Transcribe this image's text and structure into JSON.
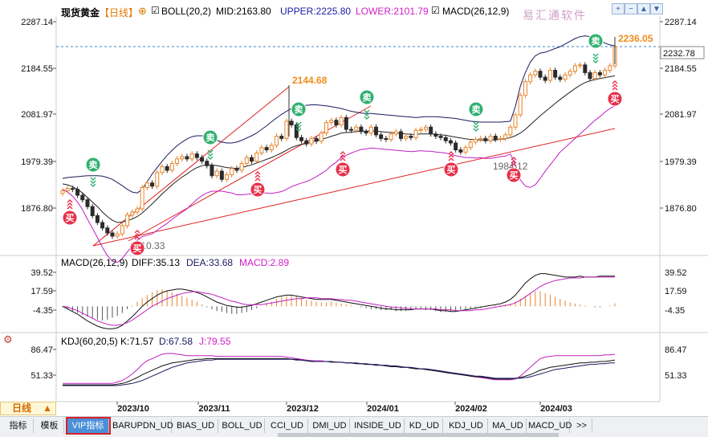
{
  "title": "现货黄金",
  "timeframe": "【日线】",
  "timeframe_label": "日线",
  "watermark": "易汇通软件",
  "indicators": {
    "boll": {
      "label": "BOLL(20,2)",
      "mid": "MID:2163.80",
      "upper": "UPPER:2225.80",
      "lower": "LOWER:2101.79"
    },
    "macd_main": "MACD(26,12,9)",
    "macd_panel": {
      "label": "MACD(26,12,9)",
      "diff": "DIFF:35.13",
      "dea": "DEA:33.68",
      "macd": "MACD:2.89"
    },
    "kdj_panel": {
      "label": "KDJ(60,20,5)",
      "k": "K:71.57",
      "d": "D:67.58",
      "j": "J:79.55"
    }
  },
  "price_axis": [
    "2287.14",
    "2184.55",
    "2081.97",
    "1979.39",
    "1876.80"
  ],
  "current_price": "2232.78",
  "macd_axis": [
    "39.52",
    "17.59",
    "-4.35"
  ],
  "kdj_axis": [
    "86.47",
    "51.33"
  ],
  "date_axis": [
    "2023/10",
    "2023/11",
    "2023/12",
    "2024/01",
    "2024/02",
    "2024/03"
  ],
  "annotations": {
    "high_recent": "2236.05",
    "high_dec": "2144.68",
    "low_oct": "1810.33",
    "low_feb": "1984.12"
  },
  "signals": {
    "buy": "买",
    "sell": "卖"
  },
  "tabs": [
    "指标",
    "模板",
    "VIP指标",
    "BARUPDN_UD",
    "BIAS_UD",
    "BOLL_UD",
    "CCI_UD",
    "DMI_UD",
    "INSIDE_UD",
    "KD_UD",
    "KDJ_UD",
    "MA_UD",
    "MACD_UD",
    ">>"
  ],
  "active_tab": "VIP指标",
  "window_controls": [
    "plus-icon",
    "minus-icon",
    "up-icon",
    "down-icon",
    "close-icon"
  ],
  "colors": {
    "up": "#e8842a",
    "down": "#2b2b2b",
    "boll": "#1a1a60",
    "lower": "#c020c0",
    "trend": "#e02020",
    "buy": "#e8304a",
    "sell": "#30b070",
    "price_tag": "#f08c1e"
  },
  "chart_data": [
    {
      "type": "candlestick",
      "title": "现货黄金【日线】",
      "series_names": [
        "MID",
        "UPPER",
        "LOWER"
      ],
      "x_labels": [
        "2023/10",
        "2023/11",
        "2023/12",
        "2024/01",
        "2024/02",
        "2024/03"
      ],
      "ylim": [
        1830,
        2300
      ],
      "close": [
        1915,
        1920,
        1918,
        1905,
        1895,
        1880,
        1860,
        1845,
        1833,
        1822,
        1815,
        1820,
        1838,
        1862,
        1868,
        1875,
        1922,
        1932,
        1925,
        1955,
        1968,
        1960,
        1975,
        1985,
        1990,
        1985,
        1996,
        1988,
        1980,
        1970,
        1948,
        1958,
        1940,
        1950,
        1964,
        1960,
        1975,
        1988,
        1980,
        1998,
        2010,
        2005,
        2015,
        2035,
        2030,
        2068,
        2060,
        2032,
        2025,
        2018,
        2030,
        2024,
        2042,
        2065,
        2070,
        2060,
        2076,
        2050,
        2048,
        2055,
        2045,
        2042,
        2055,
        2038,
        2030,
        2028,
        2040,
        2045,
        2030,
        2035,
        2032,
        2048,
        2050,
        2055,
        2040,
        2035,
        2032,
        2025,
        2020,
        2005,
        2000,
        2010,
        2022,
        2028,
        2030,
        2025,
        2035,
        2028,
        2030,
        2038,
        2055,
        2082,
        2125,
        2155,
        2170,
        2178,
        2165,
        2158,
        2180,
        2165,
        2160,
        2170,
        2178,
        2190,
        2192,
        2175,
        2162,
        2175,
        2170,
        2180,
        2190,
        2232
      ],
      "ma_mid": [
        1930,
        1928,
        1924,
        1918,
        1910,
        1900,
        1890,
        1880,
        1868,
        1858,
        1850,
        1845,
        1846,
        1849,
        1853,
        1858,
        1866,
        1876,
        1886,
        1897,
        1908,
        1918,
        1928,
        1937,
        1945,
        1952,
        1960,
        1966,
        1970,
        1972,
        1972,
        1970,
        1968,
        1966,
        1965,
        1964,
        1966,
        1969,
        1972,
        1976,
        1980,
        1984,
        1988,
        1993,
        1998,
        2004,
        2010,
        2014,
        2017,
        2019,
        2022,
        2025,
        2028,
        2031,
        2035,
        2038,
        2042,
        2043,
        2044,
        2045,
        2046,
        2046,
        2047,
        2046,
        2045,
        2044,
        2043,
        2042,
        2041,
        2040,
        2039,
        2039,
        2040,
        2040,
        2040,
        2039,
        2038,
        2037,
        2035,
        2033,
        2031,
        2029,
        2028,
        2027,
        2027,
        2026,
        2026,
        2027,
        2028,
        2029,
        2032,
        2036,
        2042,
        2050,
        2060,
        2070,
        2080,
        2089,
        2098,
        2107,
        2116,
        2124,
        2132,
        2140,
        2147,
        2153,
        2157,
        2160,
        2162,
        2164,
        2166,
        2168
      ],
      "boll_upper": [
        1942,
        1944,
        1945,
        1946,
        1947,
        1948,
        1948,
        1948,
        1947,
        1944,
        1940,
        1933,
        1926,
        1918,
        1912,
        1910,
        1918,
        1935,
        1952,
        1966,
        1980,
        1993,
        2004,
        2014,
        2022,
        2029,
        2034,
        2036,
        2036,
        2034,
        2030,
        2026,
        2022,
        2020,
        2020,
        2022,
        2026,
        2031,
        2036,
        2042,
        2050,
        2058,
        2067,
        2075,
        2083,
        2090,
        2096,
        2100,
        2102,
        2103,
        2104,
        2104,
        2103,
        2102,
        2100,
        2098,
        2096,
        2093,
        2090,
        2088,
        2086,
        2085,
        2085,
        2084,
        2083,
        2082,
        2081,
        2080,
        2079,
        2078,
        2077,
        2076,
        2077,
        2078,
        2078,
        2078,
        2077,
        2076,
        2075,
        2074,
        2072,
        2070,
        2068,
        2067,
        2066,
        2066,
        2066,
        2066,
        2066,
        2067,
        2068,
        2100,
        2145,
        2175,
        2198,
        2212,
        2218,
        2220,
        2224,
        2228,
        2232,
        2238,
        2244,
        2250,
        2254,
        2256,
        2254,
        2250,
        2246,
        2240,
        2236,
        2234
      ],
      "boll_lower": [
        1918,
        1912,
        1903,
        1890,
        1873,
        1852,
        1832,
        1812,
        1790,
        1772,
        1760,
        1757,
        1766,
        1780,
        1794,
        1806,
        1814,
        1817,
        1820,
        1828,
        1836,
        1843,
        1852,
        1860,
        1868,
        1875,
        1886,
        1896,
        1904,
        1910,
        1914,
        1914,
        1914,
        1912,
        1910,
        1906,
        1906,
        1907,
        1908,
        1910,
        1910,
        1910,
        1909,
        1911,
        1913,
        1918,
        1924,
        1928,
        1932,
        1935,
        1940,
        1946,
        1953,
        1960,
        1970,
        1978,
        1988,
        1993,
        1998,
        2002,
        2006,
        2007,
        2009,
        2008,
        2007,
        2006,
        2005,
        2004,
        2003,
        2002,
        2001,
        2002,
        2003,
        2002,
        2002,
        2000,
        1999,
        1998,
        1995,
        1992,
        1990,
        1988,
        1988,
        1987,
        1988,
        1986,
        1986,
        1988,
        1990,
        1991,
        1996,
        1972,
        1939,
        1925,
        1922,
        1928,
        1942,
        1958,
        1972,
        1986,
        2000,
        2010,
        2020,
        2030,
        2040,
        2050,
        2060,
        2070,
        2078,
        2088,
        2096,
        2102
      ]
    },
    {
      "type": "bar",
      "title": "MACD(26,12,9)",
      "series_names": [
        "DIFF",
        "DEA",
        "MACD"
      ],
      "ylim": [
        -15,
        45
      ],
      "hist": [
        -1,
        -3,
        -5,
        -7,
        -9,
        -11,
        -13,
        -14,
        -15,
        -14,
        -12,
        -10,
        -7,
        -3,
        1,
        5,
        9,
        12,
        15,
        17,
        18,
        17,
        15,
        13,
        11,
        9,
        7,
        5,
        2,
        -1,
        -3,
        -5,
        -6,
        -7,
        -8,
        -8,
        -7,
        -6,
        -4,
        -2,
        0,
        3,
        5,
        8,
        10,
        11,
        12,
        11,
        9,
        7,
        6,
        5,
        4,
        4,
        5,
        4,
        3,
        2,
        1,
        0,
        -1,
        -2,
        -3,
        -3,
        -4,
        -4,
        -4,
        -5,
        -5,
        -5,
        -4,
        -3,
        -3,
        -4,
        -4,
        -5,
        -6,
        -6,
        -6,
        -5,
        -4,
        -3,
        -2,
        -1,
        -1,
        0,
        0,
        1,
        1,
        2,
        3,
        5,
        8,
        11,
        14,
        16,
        16,
        14,
        12,
        10,
        8,
        6,
        4,
        3,
        2,
        1,
        0,
        -1,
        -1,
        0,
        1,
        3
      ],
      "diff": [
        0,
        -3,
        -6,
        -9,
        -13,
        -17,
        -20,
        -23,
        -25,
        -26,
        -26,
        -25,
        -22,
        -17,
        -12,
        -6,
        0,
        5,
        9,
        13,
        16,
        18,
        19,
        20,
        20,
        19,
        18,
        16,
        14,
        11,
        8,
        5,
        3,
        1,
        0,
        -1,
        -1,
        0,
        1,
        3,
        5,
        7,
        9,
        11,
        12,
        13,
        13,
        12,
        11,
        10,
        9,
        8,
        8,
        8,
        8,
        7,
        6,
        5,
        4,
        3,
        2,
        1,
        0,
        -1,
        -2,
        -3,
        -3,
        -4,
        -4,
        -4,
        -4,
        -3,
        -3,
        -3,
        -3,
        -4,
        -5,
        -5,
        -6,
        -6,
        -5,
        -4,
        -3,
        -2,
        -1,
        0,
        1,
        2,
        3,
        5,
        8,
        13,
        20,
        27,
        32,
        36,
        38,
        38,
        37,
        36,
        35,
        34,
        34,
        34,
        35,
        34,
        34,
        34,
        35,
        35,
        35,
        35
      ],
      "dea": [
        0,
        -1,
        -3,
        -5,
        -8,
        -11,
        -14,
        -17,
        -19,
        -21,
        -22,
        -22,
        -21,
        -19,
        -16,
        -12,
        -8,
        -4,
        0,
        3,
        6,
        9,
        11,
        13,
        15,
        16,
        17,
        17,
        16,
        15,
        14,
        12,
        10,
        8,
        6,
        5,
        3,
        2,
        2,
        2,
        2,
        3,
        4,
        5,
        6,
        7,
        8,
        9,
        9,
        10,
        10,
        10,
        9,
        9,
        9,
        8,
        8,
        7,
        7,
        6,
        5,
        4,
        3,
        2,
        1,
        0,
        -1,
        -1,
        -2,
        -2,
        -3,
        -3,
        -3,
        -3,
        -3,
        -3,
        -4,
        -4,
        -4,
        -5,
        -5,
        -5,
        -5,
        -4,
        -4,
        -3,
        -2,
        -1,
        0,
        1,
        2,
        4,
        7,
        11,
        15,
        19,
        23,
        26,
        28,
        30,
        31,
        32,
        33,
        33,
        33,
        34,
        34,
        34,
        34,
        34,
        34,
        34
      ]
    },
    {
      "type": "line",
      "title": "KDJ(60,20,5)",
      "series_names": [
        "K",
        "D",
        "J"
      ],
      "ylim": [
        35,
        95
      ],
      "k": [
        38,
        38,
        38,
        38,
        38,
        38,
        38,
        38,
        38,
        38,
        38,
        39,
        40,
        42,
        45,
        48,
        52,
        55,
        58,
        61,
        64,
        66,
        68,
        69,
        70,
        71,
        72,
        73,
        73,
        74,
        74,
        74,
        74,
        74,
        74,
        74,
        74,
        74,
        74,
        74,
        74,
        74,
        74,
        74,
        74,
        74,
        73,
        73,
        72,
        71,
        70,
        70,
        70,
        70,
        70,
        69,
        69,
        68,
        68,
        67,
        67,
        66,
        66,
        65,
        65,
        64,
        63,
        63,
        62,
        62,
        61,
        60,
        60,
        59,
        58,
        57,
        56,
        55,
        54,
        53,
        52,
        51,
        50,
        49,
        49,
        48,
        47,
        46,
        46,
        46,
        46,
        47,
        48,
        50,
        52,
        55,
        58,
        60,
        62,
        63,
        64,
        65,
        66,
        67,
        68,
        68,
        69,
        69,
        70,
        70,
        71,
        72
      ],
      "d": [
        37,
        37,
        37,
        37,
        37,
        37,
        37,
        37,
        37,
        37,
        37,
        37,
        38,
        39,
        40,
        42,
        44,
        47,
        50,
        53,
        56,
        59,
        62,
        64,
        66,
        68,
        69,
        70,
        71,
        72,
        72,
        73,
        73,
        73,
        73,
        73,
        73,
        73,
        73,
        73,
        73,
        73,
        73,
        73,
        73,
        73,
        73,
        72,
        72,
        71,
        71,
        70,
        70,
        70,
        69,
        69,
        69,
        68,
        68,
        68,
        67,
        67,
        66,
        66,
        65,
        65,
        64,
        64,
        63,
        62,
        62,
        61,
        60,
        60,
        59,
        58,
        57,
        56,
        55,
        54,
        53,
        52,
        51,
        50,
        50,
        49,
        48,
        47,
        47,
        47,
        47,
        47,
        47,
        48,
        49,
        51,
        53,
        55,
        57,
        59,
        60,
        61,
        62,
        63,
        64,
        65,
        66,
        66,
        67,
        67,
        68,
        68
      ],
      "j": [
        40,
        40,
        40,
        40,
        40,
        40,
        40,
        40,
        40,
        40,
        40,
        42,
        44,
        48,
        53,
        59,
        66,
        71,
        74,
        77,
        80,
        81,
        81,
        80,
        79,
        78,
        78,
        78,
        78,
        78,
        78,
        77,
        77,
        77,
        77,
        77,
        77,
        77,
        77,
        77,
        77,
        77,
        77,
        77,
        77,
        76,
        75,
        74,
        73,
        72,
        71,
        71,
        71,
        70,
        70,
        69,
        69,
        68,
        68,
        67,
        67,
        66,
        66,
        65,
        65,
        64,
        63,
        63,
        62,
        62,
        61,
        60,
        60,
        59,
        58,
        57,
        56,
        55,
        54,
        53,
        52,
        51,
        50,
        49,
        48,
        47,
        46,
        45,
        45,
        45,
        45,
        46,
        50,
        56,
        62,
        68,
        74,
        76,
        77,
        78,
        78,
        78,
        78,
        78,
        78,
        78,
        78,
        78,
        78,
        79,
        79,
        80
      ]
    }
  ]
}
